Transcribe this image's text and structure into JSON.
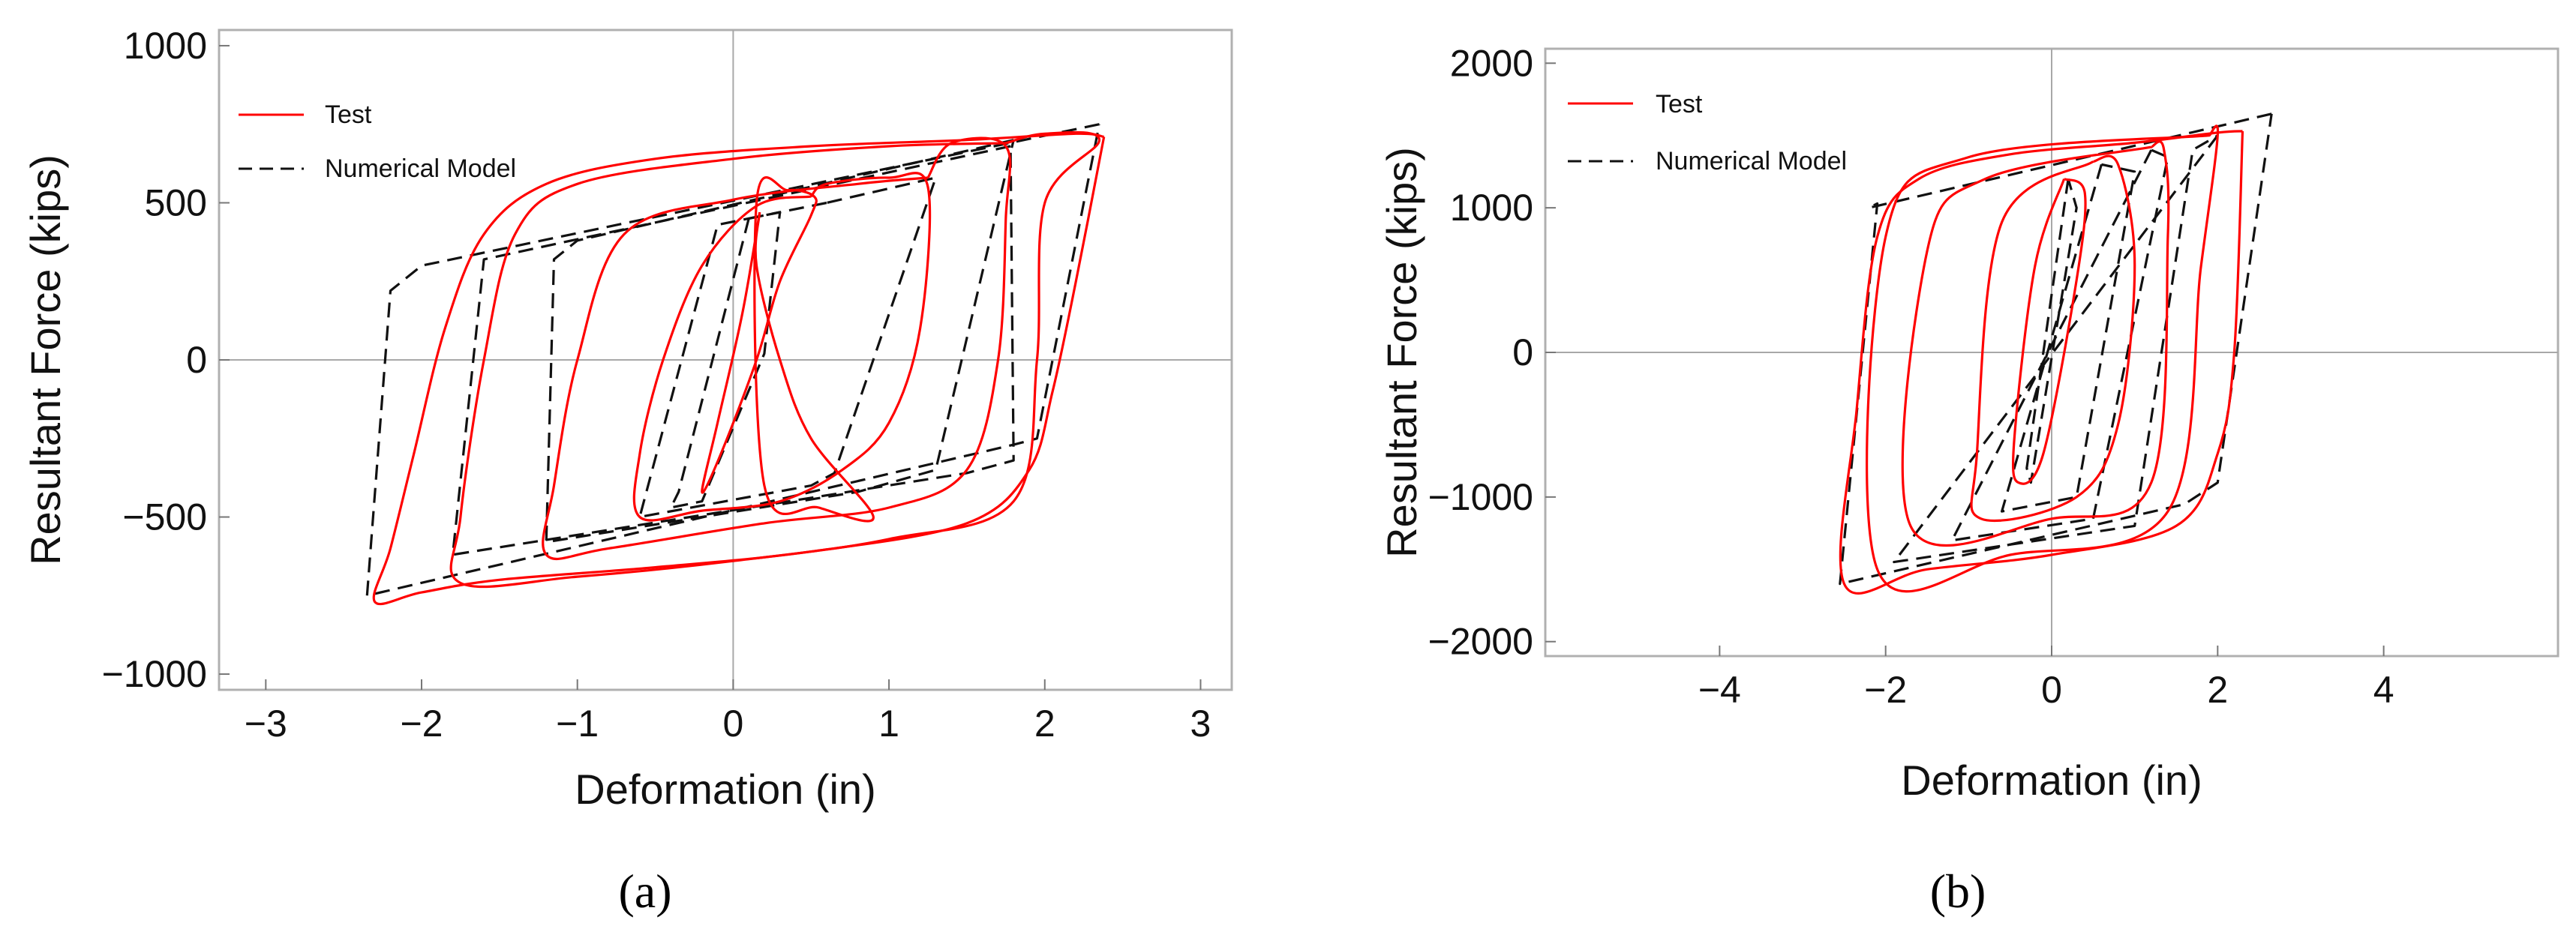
{
  "chart_data": [
    {
      "type": "line",
      "panel_label": "a",
      "xlabel": "Deformation (in)",
      "ylabel": "Resultant Force (kips)",
      "xlim": [
        -3.3,
        3.2
      ],
      "ylim": [
        -1050,
        1050
      ],
      "xticks": [
        -3,
        -2,
        -1,
        0,
        1,
        2,
        3
      ],
      "xtick_labels": [
        "−3",
        "−2",
        "−1",
        "0",
        "1",
        "2",
        "3"
      ],
      "yticks": [
        -1000,
        -500,
        0,
        500,
        1000
      ],
      "ytick_labels": [
        "−1000",
        "−500",
        "0",
        "500",
        "1000"
      ],
      "grid": false,
      "zero_lines": true,
      "legend": "top-left",
      "series": [
        {
          "name": "Test",
          "color": "#ff0000",
          "style": "solid",
          "loops": [
            [
              [
                0.17,
                470
              ],
              [
                0.06,
                150
              ],
              [
                -0.1,
                -200
              ],
              [
                -0.2,
                -420
              ],
              [
                -0.08,
                -300
              ],
              [
                0.15,
                0
              ],
              [
                0.3,
                250
              ],
              [
                0.5,
                460
              ],
              [
                0.52,
                520
              ],
              [
                0.35,
                540
              ],
              [
                0.15,
                500
              ],
              [
                0.2,
                -400
              ],
              [
                0.55,
                -470
              ],
              [
                0.9,
                -500
              ],
              [
                0.5,
                -250
              ],
              [
                0.3,
                0
              ],
              [
                0.15,
                300
              ],
              [
                0.17,
                470
              ]
            ],
            [
              [
                0.5,
                520
              ],
              [
                0.15,
                490
              ],
              [
                -0.2,
                300
              ],
              [
                -0.45,
                0
              ],
              [
                -0.6,
                -300
              ],
              [
                -0.6,
                -500
              ],
              [
                -0.2,
                -480
              ],
              [
                0.3,
                -450
              ],
              [
                0.7,
                -350
              ],
              [
                1.0,
                -200
              ],
              [
                1.2,
                100
              ],
              [
                1.25,
                550
              ],
              [
                1.0,
                580
              ],
              [
                0.6,
                560
              ],
              [
                0.5,
                520
              ]
            ],
            [
              [
                1.25,
                580
              ],
              [
                0.8,
                560
              ],
              [
                0.0,
                510
              ],
              [
                -0.7,
                400
              ],
              [
                -1.0,
                0
              ],
              [
                -1.15,
                -400
              ],
              [
                -1.2,
                -620
              ],
              [
                -0.8,
                -600
              ],
              [
                0.2,
                -520
              ],
              [
                1.0,
                -470
              ],
              [
                1.5,
                -350
              ],
              [
                1.7,
                0
              ],
              [
                1.75,
                450
              ],
              [
                1.75,
                680
              ],
              [
                1.4,
                690
              ],
              [
                1.25,
                580
              ]
            ],
            [
              [
                1.75,
                690
              ],
              [
                1.0,
                680
              ],
              [
                0.0,
                640
              ],
              [
                -1.0,
                560
              ],
              [
                -1.4,
                400
              ],
              [
                -1.6,
                0
              ],
              [
                -1.75,
                -500
              ],
              [
                -1.75,
                -710
              ],
              [
                -1.0,
                -690
              ],
              [
                0.0,
                -640
              ],
              [
                1.0,
                -570
              ],
              [
                1.8,
                -450
              ],
              [
                1.95,
                0
              ],
              [
                2.0,
                500
              ],
              [
                2.35,
                700
              ],
              [
                2.0,
                720
              ],
              [
                1.75,
                690
              ]
            ],
            [
              [
                2.38,
                710
              ],
              [
                2.2,
                250
              ],
              [
                2.05,
                -100
              ],
              [
                1.9,
                -350
              ],
              [
                1.5,
                -520
              ],
              [
                0.5,
                -610
              ],
              [
                -0.5,
                -660
              ],
              [
                -1.5,
                -700
              ],
              [
                -2.0,
                -740
              ],
              [
                -2.3,
                -770
              ],
              [
                -2.2,
                -600
              ],
              [
                -2.05,
                -300
              ],
              [
                -1.85,
                100
              ],
              [
                -1.6,
                400
              ],
              [
                -1.2,
                560
              ],
              [
                -0.5,
                640
              ],
              [
                0.5,
                680
              ],
              [
                1.5,
                700
              ],
              [
                2.2,
                720
              ],
              [
                2.38,
                710
              ]
            ]
          ]
        },
        {
          "name": "Numerical Model",
          "color": "#111111",
          "style": "dashed",
          "loops": [
            [
              [
                0.1,
                450
              ],
              [
                0.3,
                470
              ],
              [
                0.2,
                20
              ],
              [
                -0.2,
                -450
              ],
              [
                -0.4,
                -470
              ],
              [
                -0.35,
                -420
              ],
              [
                0.1,
                450
              ]
            ],
            [
              [
                0.6,
                500
              ],
              [
                -0.1,
                430
              ],
              [
                -0.6,
                -500
              ],
              [
                0.5,
                -400
              ],
              [
                0.65,
                -360
              ],
              [
                1.3,
                580
              ],
              [
                0.6,
                500
              ]
            ],
            [
              [
                1.8,
                700
              ],
              [
                -1.0,
                380
              ],
              [
                -1.15,
                320
              ],
              [
                -1.2,
                -580
              ],
              [
                0.8,
                -420
              ],
              [
                1.3,
                -350
              ],
              [
                1.8,
                700
              ]
            ],
            [
              [
                1.78,
                680
              ],
              [
                -1.6,
                320
              ],
              [
                -1.8,
                -620
              ],
              [
                1.5,
                -360
              ],
              [
                1.8,
                -320
              ],
              [
                1.78,
                680
              ]
            ],
            [
              [
                2.35,
                750
              ],
              [
                -2.0,
                300
              ],
              [
                -2.2,
                220
              ],
              [
                -2.35,
                -750
              ],
              [
                1.8,
                -270
              ],
              [
                1.95,
                -250
              ],
              [
                2.35,
                750
              ]
            ]
          ]
        }
      ]
    },
    {
      "type": "line",
      "panel_label": "b",
      "xlabel": "Deformation (in)",
      "ylabel": "Resultant Force (kips)",
      "xlim": [
        -6.1,
        6.1
      ],
      "ylim": [
        -2100,
        2100
      ],
      "xticks": [
        -4,
        -2,
        0,
        2,
        4
      ],
      "xtick_labels": [
        "−4",
        "−2",
        "0",
        "2",
        "4"
      ],
      "yticks": [
        -2000,
        -1000,
        0,
        1000,
        2000
      ],
      "ytick_labels": [
        "−2000",
        "−1000",
        "0",
        "1000",
        "2000"
      ],
      "grid": false,
      "zero_lines": true,
      "legend": "top-left",
      "series": [
        {
          "name": "Test",
          "color": "#ff0000",
          "style": "solid",
          "loops": [
            [
              [
                0.15,
                1200
              ],
              [
                -0.2,
                600
              ],
              [
                -0.45,
                -600
              ],
              [
                -0.4,
                -900
              ],
              [
                -0.1,
                -700
              ],
              [
                0.3,
                500
              ],
              [
                0.4,
                1100
              ],
              [
                0.15,
                1200
              ]
            ],
            [
              [
                0.5,
                1320
              ],
              [
                -0.6,
                900
              ],
              [
                -0.9,
                -700
              ],
              [
                -0.85,
                -1150
              ],
              [
                0.3,
                -1000
              ],
              [
                0.8,
                -500
              ],
              [
                1.0,
                600
              ],
              [
                0.8,
                1300
              ],
              [
                0.5,
                1320
              ]
            ],
            [
              [
                1.2,
                1420
              ],
              [
                -0.8,
                1200
              ],
              [
                -1.5,
                700
              ],
              [
                -1.7,
                -1200
              ],
              [
                0.0,
                -1150
              ],
              [
                1.2,
                -900
              ],
              [
                1.4,
                800
              ],
              [
                1.35,
                1410
              ],
              [
                1.2,
                1420
              ]
            ],
            [
              [
                1.9,
                1500
              ],
              [
                -1.0,
                1350
              ],
              [
                -2.0,
                800
              ],
              [
                -2.1,
                -1500
              ],
              [
                -0.5,
                -1400
              ],
              [
                1.4,
                -1100
              ],
              [
                1.8,
                600
              ],
              [
                2.0,
                1500
              ],
              [
                1.9,
                1500
              ]
            ],
            [
              [
                2.3,
                1530
              ],
              [
                2.2,
                0
              ],
              [
                2.0,
                -700
              ],
              [
                1.5,
                -1200
              ],
              [
                0.0,
                -1400
              ],
              [
                -1.5,
                -1500
              ],
              [
                -2.5,
                -1600
              ],
              [
                -2.35,
                -400
              ],
              [
                -2.1,
                800
              ],
              [
                -1.6,
                1200
              ],
              [
                -0.5,
                1370
              ],
              [
                1.0,
                1450
              ],
              [
                2.0,
                1520
              ],
              [
                2.3,
                1530
              ]
            ]
          ]
        },
        {
          "name": "Numerical Model",
          "color": "#111111",
          "style": "dashed",
          "loops": [
            [
              [
                0.2,
                1200
              ],
              [
                -0.3,
                -800
              ],
              [
                -0.25,
                -900
              ],
              [
                0.3,
                1000
              ],
              [
                0.2,
                1200
              ]
            ],
            [
              [
                0.6,
                1300
              ],
              [
                -0.6,
                -1100
              ],
              [
                0.3,
                -1000
              ],
              [
                1.0,
                1250
              ],
              [
                0.6,
                1300
              ]
            ],
            [
              [
                1.2,
                1400
              ],
              [
                -1.2,
                -1300
              ],
              [
                0.5,
                -1150
              ],
              [
                1.4,
                1350
              ],
              [
                1.2,
                1400
              ]
            ],
            [
              [
                2.0,
                1500
              ],
              [
                -1.9,
                -1450
              ],
              [
                1.0,
                -1200
              ],
              [
                1.7,
                1400
              ],
              [
                2.0,
                1500
              ]
            ],
            [
              [
                2.65,
                1650
              ],
              [
                -2.2,
                1000
              ],
              [
                -2.1,
                1030
              ],
              [
                -2.55,
                -1600
              ],
              [
                1.6,
                -1050
              ],
              [
                2.0,
                -900
              ],
              [
                2.65,
                1650
              ]
            ]
          ]
        }
      ]
    }
  ],
  "legend": {
    "test_label": "Test",
    "model_label": "Numerical Model"
  },
  "captions": {
    "a": "(a)",
    "b": "(b)"
  }
}
